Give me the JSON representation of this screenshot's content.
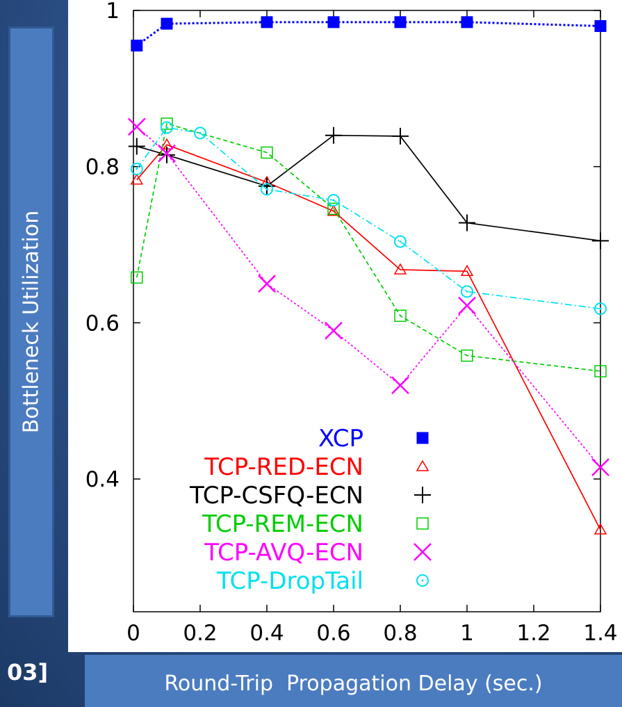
{
  "slide": {
    "ref_text": "03]"
  },
  "chart_data": {
    "type": "line",
    "xlabel": "Round-Trip  Propagation Delay (sec.)",
    "ylabel": "Bottleneck Utilization",
    "xlim": [
      0,
      1.4
    ],
    "ylim": [
      0.23,
      1.0
    ],
    "x_ticks": [
      0,
      0.2,
      0.4,
      0.6,
      0.8,
      1,
      1.2,
      1.4
    ],
    "x_tick_labels": [
      "0",
      "0.2",
      "0.4",
      "0.6",
      "0.8",
      "1",
      "1.2",
      "1.4"
    ],
    "y_ticks": [
      0.4,
      0.6,
      0.8,
      1
    ],
    "y_tick_labels": [
      "0.4",
      "0.6",
      "0.8",
      "1"
    ],
    "grid": false,
    "legend_position": "bottom-center",
    "series": [
      {
        "name": "XCP",
        "color": "#0000ff",
        "marker": "filled-square",
        "line": "dotted",
        "points": [
          [
            0.01,
            0.955
          ],
          [
            0.1,
            0.983
          ],
          [
            0.4,
            0.985
          ],
          [
            0.6,
            0.985
          ],
          [
            0.8,
            0.985
          ],
          [
            1.0,
            0.985
          ],
          [
            1.4,
            0.98
          ]
        ]
      },
      {
        "name": "TCP-RED-ECN",
        "color": "#ff0000",
        "marker": "triangle",
        "line": "solid",
        "points": [
          [
            0.01,
            0.783
          ],
          [
            0.1,
            0.828
          ],
          [
            0.4,
            0.78
          ],
          [
            0.6,
            0.743
          ],
          [
            0.8,
            0.668
          ],
          [
            1.0,
            0.666
          ],
          [
            1.4,
            0.335
          ]
        ]
      },
      {
        "name": "TCP-CSFQ-ECN",
        "color": "#000000",
        "marker": "plus",
        "line": "solid",
        "points": [
          [
            0.01,
            0.826
          ],
          [
            0.1,
            0.815
          ],
          [
            0.4,
            0.775
          ],
          [
            0.6,
            0.84
          ],
          [
            0.8,
            0.839
          ],
          [
            1.0,
            0.728
          ],
          [
            1.4,
            0.705
          ]
        ]
      },
      {
        "name": "TCP-REM-ECN",
        "color": "#00cc00",
        "marker": "square",
        "line": "dashed",
        "points": [
          [
            0.01,
            0.658
          ],
          [
            0.1,
            0.855
          ],
          [
            0.4,
            0.818
          ],
          [
            0.6,
            0.746
          ],
          [
            0.8,
            0.609
          ],
          [
            1.0,
            0.558
          ],
          [
            1.4,
            0.538
          ]
        ]
      },
      {
        "name": "TCP-AVQ-ECN",
        "color": "#ff00ff",
        "marker": "cross",
        "line": "dotted",
        "points": [
          [
            0.01,
            0.851
          ],
          [
            0.1,
            0.817
          ],
          [
            0.4,
            0.65
          ],
          [
            0.6,
            0.59
          ],
          [
            0.8,
            0.52
          ],
          [
            1.0,
            0.622
          ],
          [
            1.4,
            0.415
          ]
        ]
      },
      {
        "name": "TCP-DropTail",
        "color": "#00e0f0",
        "marker": "circle",
        "line": "dashdot",
        "points": [
          [
            0.01,
            0.797
          ],
          [
            0.1,
            0.85
          ],
          [
            0.2,
            0.843
          ],
          [
            0.4,
            0.771
          ],
          [
            0.6,
            0.757
          ],
          [
            0.8,
            0.704
          ],
          [
            1.0,
            0.64
          ],
          [
            1.4,
            0.618
          ]
        ]
      }
    ]
  }
}
